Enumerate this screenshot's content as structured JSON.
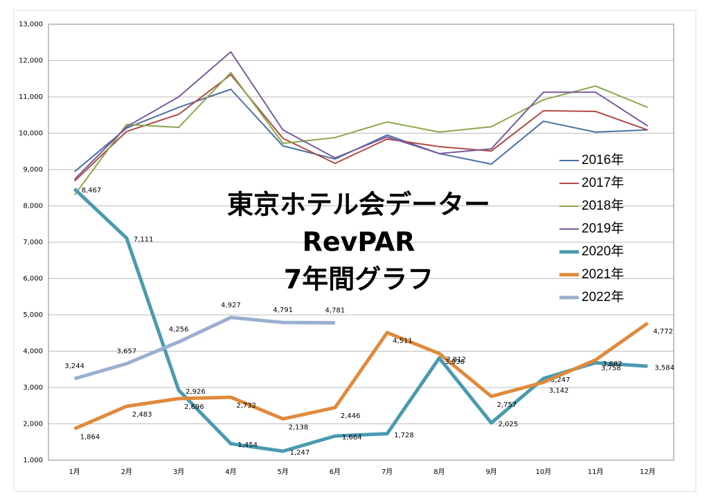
{
  "chart_data": {
    "type": "line",
    "title": [
      "東京ホテル会データー",
      "RevPAR",
      "7年間グラフ"
    ],
    "categories": [
      "1月",
      "2月",
      "3月",
      "4月",
      "5月",
      "6月",
      "7月",
      "8月",
      "9月",
      "10月",
      "11月",
      "12月"
    ],
    "ylim": [
      1000,
      13000
    ],
    "yticks": [
      {
        "value": 1000,
        "label": "1,000"
      },
      {
        "value": 2000,
        "label": "2,000"
      },
      {
        "value": 3000,
        "label": "3,000"
      },
      {
        "value": 4000,
        "label": "4,000"
      },
      {
        "value": 5000,
        "label": "5,000"
      },
      {
        "value": 6000,
        "label": "6,000"
      },
      {
        "value": 7000,
        "label": "7,000"
      },
      {
        "value": 8000,
        "label": "8,000"
      },
      {
        "value": 9000,
        "label": "9,000"
      },
      {
        "value": 10000,
        "label": "10,000"
      },
      {
        "value": 11000,
        "label": "11,000"
      },
      {
        "value": 12000,
        "label": "12,000"
      },
      {
        "value": 13000,
        "label": "13,000"
      }
    ],
    "grid": true,
    "legend": "right",
    "series": [
      {
        "name": "2016年",
        "color": "#4a6fa5",
        "width": 2,
        "values": [
          8940,
          10140,
          10710,
          11210,
          9650,
          9290,
          9950,
          9440,
          9150,
          10330,
          10030,
          10090
        ]
      },
      {
        "name": "2017年",
        "color": "#b04a45",
        "width": 2,
        "values": [
          8680,
          10050,
          10520,
          11610,
          9860,
          9170,
          9840,
          9630,
          9510,
          10620,
          10600,
          10090
        ]
      },
      {
        "name": "2018年",
        "color": "#8aa64a",
        "width": 2,
        "values": [
          8300,
          10240,
          10160,
          11670,
          9720,
          9880,
          10310,
          10030,
          10180,
          10920,
          11300,
          10710
        ]
      },
      {
        "name": "2019年",
        "color": "#7a5a9a",
        "width": 2,
        "values": [
          8730,
          10180,
          11000,
          12240,
          10090,
          9320,
          9900,
          9440,
          9570,
          11130,
          11130,
          10200
        ]
      },
      {
        "name": "2020年",
        "color": "#4a9ab0",
        "width": 5,
        "values": [
          8467,
          7111,
          2926,
          1454,
          1247,
          1664,
          1728,
          3812,
          2025,
          3247,
          3682,
          3584
        ],
        "value_labels": [
          "8,467",
          "7,111",
          "2,926",
          "1,454",
          "1,247",
          "1,664",
          "1,728",
          "3,812",
          "2,025",
          "3,247",
          "3,682",
          "3,584"
        ]
      },
      {
        "name": "2021年",
        "color": "#e08a3c",
        "width": 5,
        "values": [
          1864,
          2483,
          2696,
          2732,
          2138,
          2446,
          4511,
          3936,
          2757,
          3142,
          3758,
          4772
        ],
        "value_labels": [
          "1,864",
          "2,483",
          "2,696",
          "2,732",
          "2,138",
          "2,446",
          "4,511",
          "3,936",
          "2,757",
          "3,142",
          "3,758",
          "4,772"
        ]
      },
      {
        "name": "2022年",
        "color": "#9aafd0",
        "width": 5,
        "values": [
          3244,
          3657,
          4256,
          4927,
          4791,
          4781,
          null,
          null,
          null,
          null,
          null,
          null
        ],
        "value_labels": [
          "3,244",
          "3,657",
          "4,256",
          "4,927",
          "4,791",
          "4,781",
          null,
          null,
          null,
          null,
          null,
          null
        ]
      }
    ]
  }
}
